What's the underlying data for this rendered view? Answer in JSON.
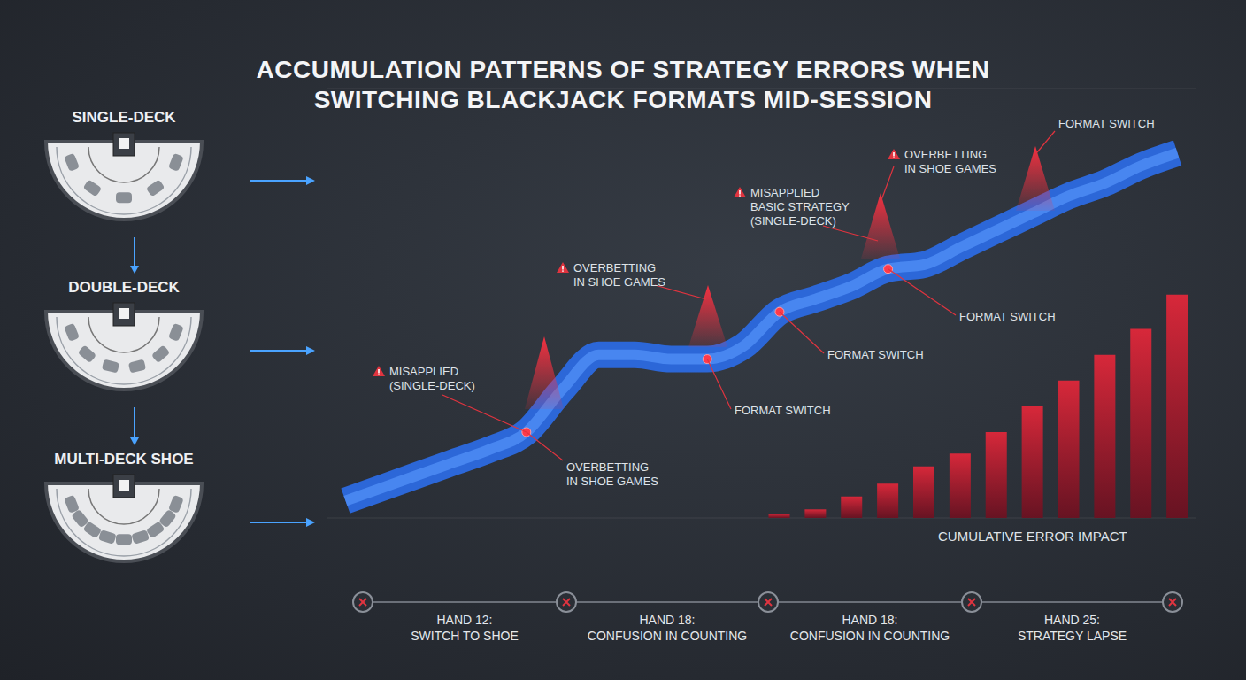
{
  "chart_data": {
    "type": "line",
    "title": "ACCUMULATION PATTERNS OF STRATEGY ERRORS WHEN SWITCHING BLACKJACK FORMATS MID-SESSION",
    "formats": [
      "SINGLE-DECK",
      "DOUBLE-DECK",
      "MULTI-DECK SHOE"
    ],
    "x": [
      0,
      1,
      2,
      3,
      4,
      5,
      6,
      7,
      8,
      9,
      10,
      11,
      12,
      13,
      14,
      15,
      16,
      17,
      18,
      19,
      20,
      21,
      22,
      23
    ],
    "series": [
      {
        "type": "line",
        "color": "#2c67d8",
        "values": [
          4,
          7,
          10,
          13,
          16,
          20,
          30,
          38,
          38,
          37,
          37,
          40,
          48,
          51,
          54,
          58,
          59,
          63,
          67,
          71,
          75,
          78,
          82,
          85
        ]
      },
      {
        "name": "CUMULATIVE ERROR IMPACT",
        "type": "bar",
        "color": "#d7283a",
        "values": [
          null,
          null,
          null,
          null,
          null,
          null,
          null,
          null,
          null,
          null,
          null,
          null,
          1,
          2,
          5,
          8,
          12,
          15,
          20,
          26,
          32,
          38,
          44,
          52
        ]
      }
    ],
    "xlim": [
      -0.5,
      23.5
    ],
    "ylim": [
      0,
      100
    ],
    "yticks": [
      0,
      10,
      20,
      30,
      40,
      50,
      60,
      70,
      80,
      90,
      100
    ],
    "grid": true,
    "tick_labels": false,
    "annotations": [
      {
        "lines": [
          "MISAPPLIED",
          "(SINGLE-DECK)"
        ]
      },
      {
        "lines": [
          "OVERBETTING",
          "IN SHOE GAMES"
        ]
      },
      {
        "lines": [
          "OVERBETTING",
          "IN SHOE GAMES"
        ]
      },
      {
        "lines": [
          "FORMAT SWITCH"
        ]
      },
      {
        "lines": [
          "MISAPPLIED",
          "BASIC STRATEGY",
          "(SINGLE-DECK)"
        ]
      },
      {
        "lines": [
          "FORMAT SWITCH"
        ]
      },
      {
        "lines": [
          "OVERBETTING",
          "IN SHOE GAMES"
        ]
      },
      {
        "lines": [
          "FORMAT SWITCH"
        ]
      },
      {
        "lines": [
          "FORMAT SWITCH"
        ]
      }
    ],
    "timeline": [
      {
        "lines": [
          "HAND 12:",
          "SWITCH TO SHOE"
        ]
      },
      {
        "lines": [
          "HAND 18:",
          "CONFUSION IN COUNTING"
        ]
      },
      {
        "lines": [
          "HAND 18:",
          "CONFUSION IN COUNTING"
        ]
      },
      {
        "lines": [
          "HAND 25:",
          "STRATEGY LAPSE"
        ]
      }
    ]
  }
}
